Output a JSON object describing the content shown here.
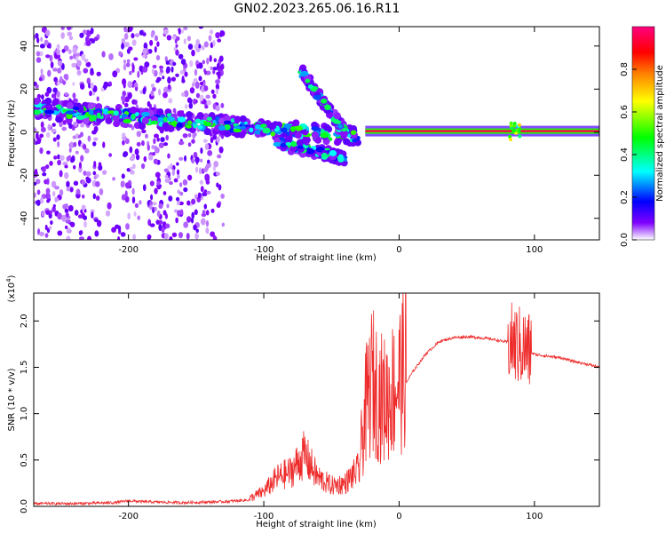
{
  "title": "GN02.2023.265.06.16.R11",
  "chart_data": [
    {
      "type": "heatmap",
      "xlabel": "Height of straight line (km)",
      "ylabel": "Frequency (Hz)",
      "xlim": [
        -270,
        148
      ],
      "ylim": [
        -50,
        49
      ],
      "xticks": [
        -200,
        -100,
        0,
        100
      ],
      "xtick_labels": [
        "-200",
        "-100",
        "0",
        "100"
      ],
      "yticks": [
        -40,
        -20,
        0,
        20,
        40
      ],
      "ytick_labels": [
        "-40",
        "-20",
        "0",
        "20",
        "40"
      ],
      "colorbar": {
        "label": "Normalized spectral amplitude",
        "range": [
          0,
          1
        ],
        "ticks": [
          0.0,
          0.2,
          0.4,
          0.6,
          0.8
        ],
        "tick_labels": [
          "0.0",
          "0.2",
          "0.4",
          "0.6",
          "0.8"
        ],
        "colors": [
          "#ffffff",
          "#8000ff",
          "#0000ff",
          "#00ffff",
          "#00ff00",
          "#ffff00",
          "#ff8000",
          "#ff0000",
          "#ff0080"
        ]
      },
      "features": [
        {
          "name": "background scatter",
          "x_range": [
            -270,
            -130
          ],
          "f_range": [
            -50,
            49
          ],
          "amplitude": 0.1
        },
        {
          "name": "main band",
          "x_range": [
            -270,
            -30
          ],
          "f_start": 11,
          "f_end": -2,
          "amplitude": 0.5
        },
        {
          "name": "descending branch",
          "x_range": [
            -90,
            -40
          ],
          "f_start": -5,
          "f_end": -12,
          "amplitude": 0.45
        },
        {
          "name": "upper branch",
          "x_range": [
            -72,
            -40
          ],
          "f_start": 28,
          "f_end": 0,
          "amplitude": 0.45
        },
        {
          "name": "carrier line",
          "x_range": [
            -25,
            148
          ],
          "f": 0.5,
          "amplitude": 0.95
        }
      ]
    },
    {
      "type": "line",
      "xlabel": "Height of straight line (km)",
      "ylabel": "SNR (10 * v/v)",
      "y_multiplier": "(x10",
      "y_multiplier_exp": "4",
      "y_multiplier_close": ")",
      "xlim": [
        -270,
        148
      ],
      "ylim": [
        0,
        2.3
      ],
      "xticks": [
        -200,
        -100,
        0,
        100
      ],
      "xtick_labels": [
        "-200",
        "-100",
        "0",
        "100"
      ],
      "yticks": [
        0.0,
        0.5,
        1.0,
        1.5,
        2.0
      ],
      "ytick_labels": [
        "0.0",
        "0.5",
        "1.0",
        "1.5",
        "2.0"
      ],
      "color": "#ee2b2b",
      "x": [
        -270,
        -240,
        -210,
        -200,
        -190,
        -160,
        -130,
        -110,
        -100,
        -90,
        -80,
        -70,
        -65,
        -60,
        -50,
        -40,
        -30,
        -25,
        -20,
        -15,
        -10,
        0,
        10,
        20,
        30,
        40,
        50,
        60,
        70,
        80,
        85,
        90,
        95,
        100,
        110,
        120,
        130,
        140,
        148
      ],
      "y": [
        0.03,
        0.03,
        0.04,
        0.06,
        0.05,
        0.04,
        0.05,
        0.07,
        0.13,
        0.25,
        0.3,
        0.45,
        0.35,
        0.25,
        0.18,
        0.2,
        0.32,
        0.9,
        1.2,
        1.05,
        1.0,
        1.2,
        1.45,
        1.65,
        1.78,
        1.82,
        1.83,
        1.82,
        1.8,
        1.77,
        1.75,
        1.72,
        1.68,
        1.64,
        1.62,
        1.6,
        1.56,
        1.53,
        1.5
      ],
      "noise_zone": [
        -30,
        100
      ]
    }
  ]
}
